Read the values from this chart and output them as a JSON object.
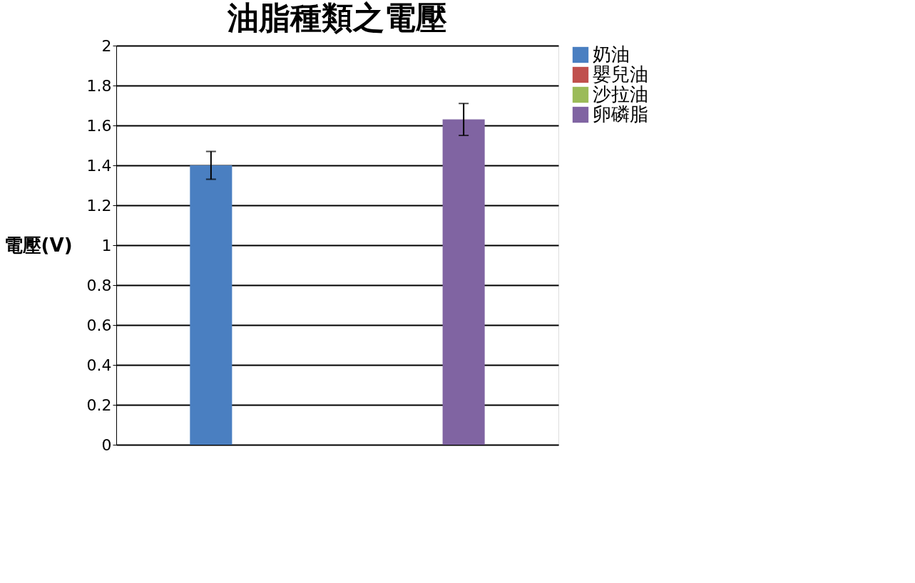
{
  "chart_data": {
    "type": "bar",
    "title": "油脂種類之電壓",
    "ylabel": "電壓(V)",
    "categories": [
      null
    ],
    "series": [
      {
        "name": "奶油",
        "color": "#4a7fc1",
        "values": [
          1.4
        ],
        "errors": [
          [
            1.33,
            1.47
          ]
        ]
      },
      {
        "name": "嬰兒油",
        "color": "#c0504d",
        "values": [
          0
        ]
      },
      {
        "name": "沙拉油",
        "color": "#9bbb59",
        "values": [
          0
        ]
      },
      {
        "name": "卵磷脂",
        "color": "#8064a2",
        "values": [
          1.63
        ],
        "errors": [
          [
            1.55,
            1.71
          ]
        ]
      }
    ],
    "ylim": [
      0,
      2
    ],
    "yticks": [
      0,
      0.2,
      0.4,
      0.6,
      0.8,
      1,
      1.2,
      1.4,
      1.6,
      1.8,
      2
    ],
    "grid": "y",
    "legend": "right",
    "tick_labels": "y"
  }
}
